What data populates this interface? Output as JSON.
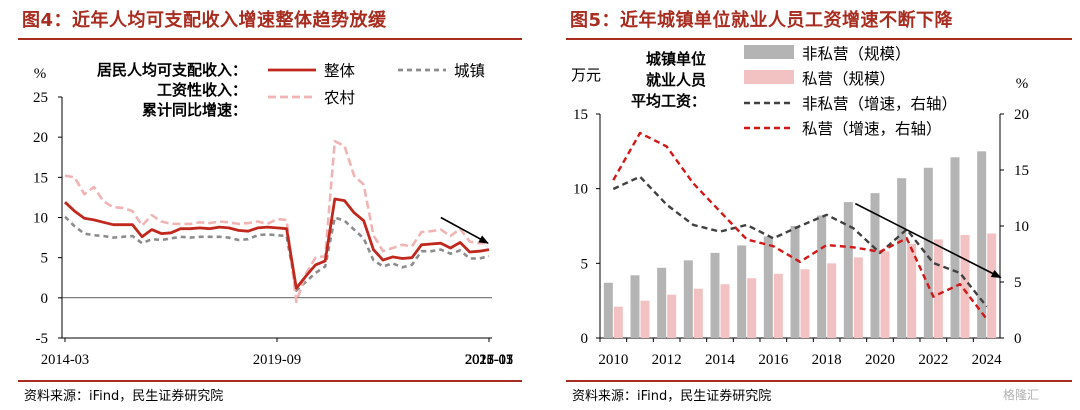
{
  "left": {
    "title": "图4：近年人均可支配收入增速整体趋势放缓",
    "source": "资料来源：iFind，民生证券研究院",
    "legend_note": [
      "居民人均可支配收入：",
      "工资性收入：",
      "累计同比增速："
    ],
    "y_unit": "%",
    "chart_data": {
      "type": "line",
      "x": [
        "2014-03",
        "2014-06",
        "2014-09",
        "2014-12",
        "2015-03",
        "2015-06",
        "2015-09",
        "2015-12",
        "2016-03",
        "2016-06",
        "2016-09",
        "2016-12",
        "2017-03",
        "2017-06",
        "2017-09",
        "2017-12",
        "2018-03",
        "2018-06",
        "2018-09",
        "2018-12",
        "2019-03",
        "2019-06",
        "2019-09",
        "2019-12",
        "2020-03",
        "2020-06",
        "2020-09",
        "2020-12",
        "2021-03",
        "2021-06",
        "2021-09",
        "2021-12",
        "2022-03",
        "2022-06",
        "2022-09",
        "2022-12",
        "2023-03",
        "2023-06",
        "2023-09",
        "2023-12",
        "2024-03",
        "2024-06",
        "2024-09",
        "2024-12",
        "2025-03"
      ],
      "x_ticks": [
        "2014-03",
        "2016-01",
        "2017-11",
        "2019-09",
        "2021-07",
        "2023-05",
        "2025-03"
      ],
      "ylim": [
        -5,
        25
      ],
      "y_ticks": [
        -5,
        0,
        5,
        10,
        15,
        20,
        25
      ],
      "series": [
        {
          "name": "整体",
          "color": "#c0281e",
          "dash": "solid",
          "values": [
            11.9,
            10.8,
            9.9,
            9.7,
            9.4,
            9.1,
            9.1,
            9.1,
            7.6,
            8.5,
            8.0,
            8.1,
            8.6,
            8.6,
            8.7,
            8.6,
            8.8,
            8.7,
            8.4,
            8.3,
            8.7,
            8.8,
            8.7,
            8.6,
            1.2,
            2.7,
            4.1,
            4.6,
            12.3,
            12.1,
            10.6,
            9.6,
            6.0,
            4.7,
            5.1,
            4.9,
            5.0,
            6.6,
            6.7,
            6.8,
            6.2,
            6.9,
            5.7,
            5.8,
            6.0
          ]
        },
        {
          "name": "城镇",
          "color": "#8c8c8c",
          "dash": "5,4",
          "values": [
            10.1,
            8.9,
            8.0,
            7.8,
            7.7,
            7.5,
            7.6,
            7.7,
            6.8,
            7.3,
            7.2,
            7.4,
            7.6,
            7.5,
            7.6,
            7.6,
            7.6,
            7.5,
            7.2,
            7.3,
            7.8,
            7.9,
            7.8,
            7.7,
            0.9,
            2.0,
            3.1,
            3.9,
            10.0,
            9.6,
            8.5,
            7.4,
            4.7,
            3.9,
            4.3,
            3.8,
            4.1,
            5.8,
            5.8,
            6.0,
            5.5,
            5.9,
            4.9,
            4.9,
            5.2
          ]
        },
        {
          "name": "农村",
          "color": "#f0b4b4",
          "dash": "8,4",
          "values": [
            15.2,
            15.0,
            12.9,
            13.8,
            12.0,
            11.3,
            11.2,
            10.8,
            9.0,
            10.3,
            9.5,
            9.2,
            9.2,
            9.2,
            9.4,
            9.3,
            9.5,
            9.4,
            9.2,
            9.3,
            9.5,
            9.2,
            9.8,
            9.7,
            -0.5,
            3.0,
            5.0,
            5.2,
            19.5,
            18.9,
            15.2,
            14.1,
            7.8,
            5.8,
            6.2,
            6.6,
            6.4,
            8.2,
            8.3,
            8.5,
            7.7,
            8.6,
            7.0,
            6.8,
            6.8
          ]
        }
      ],
      "annotation": "downward arrow 2023-11 to 2025-03"
    }
  },
  "right": {
    "title": "图5：近年城镇单位就业人员工资增速不断下降",
    "source": "资料来源：iFind，民生证券研究院",
    "legend_note": [
      "城镇单位",
      "就业人员",
      "平均工资："
    ],
    "y_left_unit": "万元",
    "y_right_unit": "%",
    "chart_data": {
      "type": "bar",
      "categories": [
        "2010",
        "2011",
        "2012",
        "2013",
        "2014",
        "2015",
        "2016",
        "2017",
        "2018",
        "2019",
        "2020",
        "2021",
        "2022",
        "2023",
        "2024"
      ],
      "x_ticks": [
        "2010",
        "2012",
        "2014",
        "2016",
        "2018",
        "2020",
        "2022",
        "2024"
      ],
      "ylim_left": [
        0,
        15
      ],
      "y_ticks_left": [
        0,
        5,
        10,
        15
      ],
      "ylim_right": [
        0,
        20
      ],
      "y_ticks_right": [
        0,
        5,
        10,
        15,
        20
      ],
      "series": [
        {
          "name": "非私营（规模）",
          "axis": "left",
          "kind": "bar",
          "color": "#b4b4b4",
          "values": [
            3.7,
            4.2,
            4.7,
            5.2,
            5.7,
            6.2,
            6.8,
            7.5,
            8.2,
            9.1,
            9.7,
            10.7,
            11.4,
            12.1,
            12.5
          ]
        },
        {
          "name": "私营（规模）",
          "axis": "left",
          "kind": "bar",
          "color": "#f2c2c2",
          "values": [
            2.1,
            2.5,
            2.9,
            3.3,
            3.6,
            4.0,
            4.3,
            4.6,
            5.0,
            5.4,
            5.8,
            6.3,
            6.6,
            6.9,
            7.0
          ]
        },
        {
          "name": "非私营（增速，右轴）",
          "axis": "right",
          "kind": "line",
          "color": "#404040",
          "dash": "6,4",
          "values": [
            13.3,
            14.4,
            11.9,
            10.1,
            9.5,
            10.1,
            8.9,
            10.0,
            11.0,
            9.8,
            7.6,
            9.7,
            6.7,
            5.8,
            2.8
          ]
        },
        {
          "name": "私营（增速，右轴）",
          "axis": "right",
          "kind": "line",
          "color": "#d01818",
          "dash": "6,4",
          "values": [
            14.1,
            18.3,
            17.1,
            13.8,
            11.3,
            8.8,
            8.2,
            6.8,
            8.3,
            8.1,
            7.7,
            8.9,
            3.7,
            4.8,
            1.7
          ]
        }
      ],
      "annotation": "downward arrow 2020 to 2024"
    }
  },
  "watermark": "格隆汇"
}
